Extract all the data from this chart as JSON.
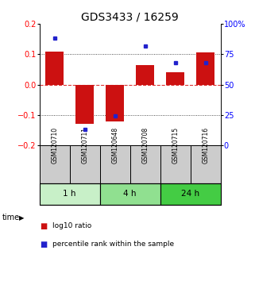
{
  "title": "GDS3433 / 16259",
  "samples": [
    "GSM120710",
    "GSM120711",
    "GSM120648",
    "GSM120708",
    "GSM120715",
    "GSM120716"
  ],
  "log10_ratio": [
    0.11,
    -0.13,
    -0.12,
    0.065,
    0.04,
    0.105
  ],
  "percentile_rank": [
    88,
    13,
    24,
    82,
    68,
    68
  ],
  "groups": [
    {
      "label": "1 h",
      "indices": [
        0,
        1
      ],
      "color": "#c8f0c8"
    },
    {
      "label": "4 h",
      "indices": [
        2,
        3
      ],
      "color": "#90e090"
    },
    {
      "label": "24 h",
      "indices": [
        4,
        5
      ],
      "color": "#44cc44"
    }
  ],
  "bar_color": "#cc1111",
  "dot_color": "#2222cc",
  "ylim_left": [
    -0.2,
    0.2
  ],
  "ylim_right": [
    0,
    100
  ],
  "yticks_left": [
    -0.2,
    -0.1,
    0.0,
    0.1,
    0.2
  ],
  "yticks_right": [
    0,
    25,
    50,
    75,
    100
  ],
  "hline_zero_color": "#dd3333",
  "hline_dotted_color": "#222222",
  "bg_color": "#ffffff",
  "sample_box_color": "#cccccc",
  "time_label": "time",
  "legend_log10": "log10 ratio",
  "legend_pct": "percentile rank within the sample",
  "title_fontsize": 10,
  "tick_fontsize": 7,
  "bar_width": 0.6
}
